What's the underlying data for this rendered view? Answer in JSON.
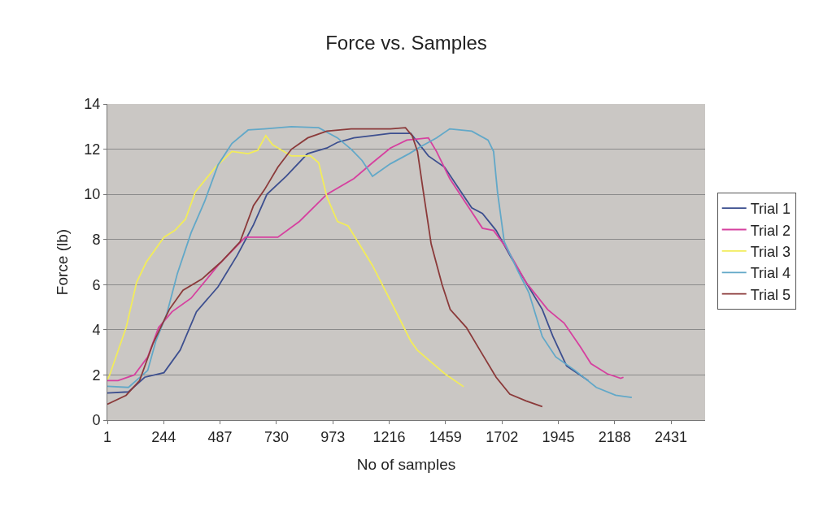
{
  "chart_data": {
    "type": "line",
    "title": "Force vs. Samples",
    "xlabel": "No of samples",
    "ylabel": "Force (lb)",
    "xlim": [
      1,
      2578
    ],
    "xticks": [
      1,
      244,
      487,
      730,
      973,
      1216,
      1459,
      1702,
      1945,
      2188,
      2431
    ],
    "ylim": [
      0,
      14
    ],
    "yticks": [
      0,
      2,
      4,
      6,
      8,
      10,
      12,
      14
    ],
    "grid": "y",
    "legend": "right",
    "marker": "none",
    "line_style": "solid",
    "series": [
      {
        "name": "Trial 1",
        "color": "#3d4f8f",
        "x": [
          1,
          92,
          162,
          245,
          315,
          385,
          478,
          561,
          631,
          689,
          772,
          864,
          947,
          993,
          1064,
          1144,
          1221,
          1309,
          1385,
          1455,
          1513,
          1572,
          1618,
          1677,
          1736,
          1806,
          1876,
          1922,
          1981,
          2074
        ],
        "values": [
          1.2,
          1.25,
          1.9,
          2.1,
          3.1,
          4.8,
          5.9,
          7.3,
          8.65,
          10.0,
          10.8,
          11.8,
          12.05,
          12.3,
          12.5,
          12.6,
          12.7,
          12.7,
          11.7,
          11.2,
          10.3,
          9.4,
          9.15,
          8.4,
          7.3,
          6.1,
          4.9,
          3.7,
          2.4,
          1.75
        ]
      },
      {
        "name": "Trial 2",
        "color": "#d6409f",
        "x": [
          1,
          47,
          117,
          175,
          222,
          280,
          362,
          478,
          596,
          678,
          736,
          829,
          947,
          1064,
          1144,
          1221,
          1292,
          1385,
          1420,
          1477,
          1560,
          1618,
          1666,
          1723,
          1806,
          1899,
          1970,
          2040,
          2086,
          2156,
          2214,
          2226
        ],
        "values": [
          1.75,
          1.75,
          2.0,
          2.8,
          4.1,
          4.8,
          5.4,
          6.85,
          8.1,
          8.1,
          8.1,
          8.8,
          10.0,
          10.7,
          11.4,
          12.05,
          12.4,
          12.5,
          11.9,
          10.7,
          9.4,
          8.5,
          8.4,
          7.6,
          6.1,
          4.9,
          4.3,
          3.25,
          2.5,
          2.05,
          1.85,
          1.9
        ]
      },
      {
        "name": "Trial 3",
        "color": "#f2ec5a",
        "x": [
          1,
          11,
          82,
          127,
          169,
          245,
          292,
          338,
          380,
          467,
          538,
          608,
          649,
          684,
          713,
          794,
          877,
          912,
          947,
          993,
          1039,
          1144,
          1221,
          1309,
          1337,
          1456,
          1537
        ],
        "values": [
          1.8,
          2.0,
          4.1,
          6.1,
          7.0,
          8.1,
          8.4,
          8.9,
          10.1,
          11.2,
          11.9,
          11.8,
          11.95,
          12.6,
          12.2,
          11.7,
          11.7,
          11.4,
          9.9,
          8.8,
          8.6,
          6.85,
          5.3,
          3.5,
          3.1,
          2.05,
          1.48
        ]
      },
      {
        "name": "Trial 4",
        "color": "#62a8c8",
        "x": [
          1,
          92,
          175,
          210,
          257,
          303,
          362,
          421,
          478,
          538,
          608,
          678,
          794,
          912,
          993,
          1052,
          1099,
          1144,
          1221,
          1302,
          1350,
          1420,
          1477,
          1572,
          1642,
          1666,
          1683,
          1712,
          1771,
          1818,
          1876,
          1934,
          2017,
          2109,
          2192,
          2262
        ],
        "values": [
          1.5,
          1.45,
          2.2,
          3.5,
          4.7,
          6.5,
          8.3,
          9.7,
          11.3,
          12.25,
          12.85,
          12.9,
          13.0,
          12.95,
          12.5,
          12.0,
          11.5,
          10.8,
          11.35,
          11.8,
          12.1,
          12.5,
          12.9,
          12.8,
          12.4,
          11.9,
          10.1,
          7.9,
          6.6,
          5.65,
          3.7,
          2.8,
          2.2,
          1.45,
          1.1,
          1.0
        ]
      },
      {
        "name": "Trial 5",
        "color": "#8b3a3a",
        "x": [
          1,
          82,
          140,
          198,
          268,
          327,
          409,
          491,
          573,
          631,
          678,
          736,
          795,
          865,
          947,
          1052,
          1221,
          1286,
          1315,
          1338,
          1362,
          1397,
          1444,
          1479,
          1549,
          1607,
          1677,
          1736,
          1806,
          1876
        ],
        "values": [
          0.7,
          1.1,
          1.75,
          3.4,
          4.9,
          5.75,
          6.25,
          7.0,
          7.9,
          9.5,
          10.2,
          11.2,
          12.0,
          12.5,
          12.8,
          12.9,
          12.9,
          12.95,
          12.6,
          11.9,
          10.2,
          7.8,
          6.0,
          4.9,
          4.1,
          3.1,
          1.9,
          1.15,
          0.85,
          0.6
        ]
      }
    ]
  }
}
